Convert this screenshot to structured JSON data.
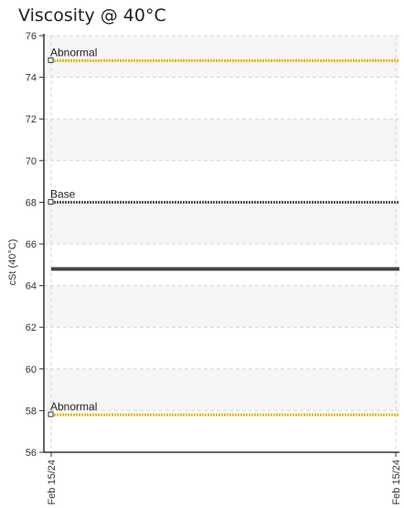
{
  "chart_data": {
    "type": "line",
    "title": "Viscosity @ 40°C",
    "ylabel": "cSt (40°C)",
    "xlabel": "",
    "ylim": [
      56,
      76
    ],
    "yticks": [
      56,
      58,
      60,
      62,
      64,
      66,
      68,
      70,
      72,
      74,
      76
    ],
    "x_tick_labels": [
      "Feb 15/24",
      "Feb 15/24"
    ],
    "grid": true,
    "reference_lines": [
      {
        "label": "Abnormal",
        "value": 74.8,
        "color": "#e7b416",
        "style": "dotted"
      },
      {
        "label": "Base",
        "value": 68.0,
        "color": "#555555",
        "style": "dotted"
      },
      {
        "label": "Abnormal",
        "value": 57.8,
        "color": "#e7b416",
        "style": "dotted"
      }
    ],
    "series": [
      {
        "x": [
          "Feb 15/24",
          "Feb 15/24"
        ],
        "values": [
          64.8,
          64.8
        ],
        "color": "#444444"
      }
    ]
  }
}
